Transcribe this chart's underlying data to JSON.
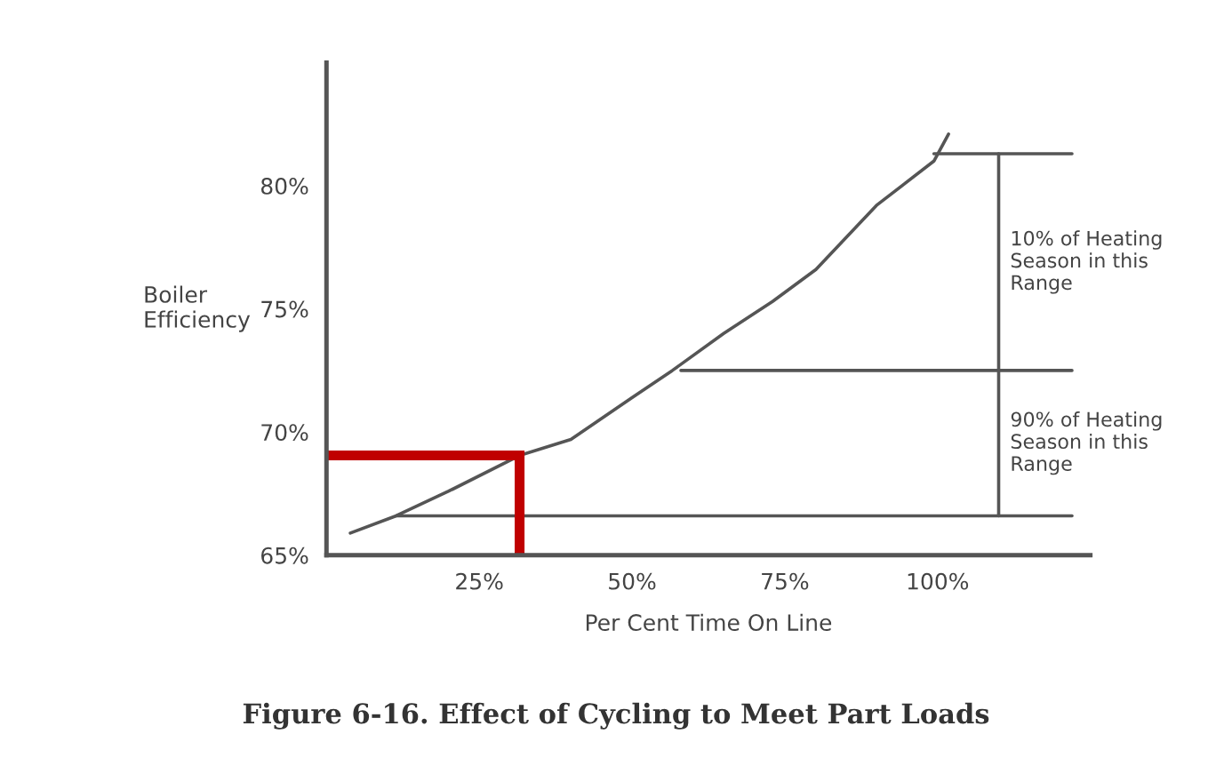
{
  "chart_data": {
    "type": "line",
    "title": "Figure 6-16. Effect of Cycling to Meet Part Loads",
    "xlabel": "Per Cent Time On Line",
    "ylabel": "Boiler\nEfficiency",
    "series": [
      {
        "color": "#555555",
        "x": [
          3.9,
          11.4,
          20,
          31.6,
          40,
          50,
          56.6,
          65,
          73,
          80.1,
          90,
          99.4,
          101.8
        ],
        "values": [
          65.9,
          66.6,
          67.6,
          69.05,
          69.7,
          71.4,
          72.5,
          74.0,
          75.3,
          76.6,
          79.2,
          81.0,
          82.1
        ]
      },
      {
        "color": "#555555",
        "x": [
          11.4,
          122
        ],
        "values": [
          66.6,
          66.6
        ]
      },
      {
        "color": "#555555",
        "x": [
          58,
          122
        ],
        "values": [
          72.5,
          72.5
        ]
      },
      {
        "color": "#555555",
        "x": [
          99.4,
          122
        ],
        "values": [
          81.3,
          81.3
        ]
      },
      {
        "color": "#555555",
        "x": [
          110,
          110,
          110
        ],
        "values": [
          66.6,
          72.5,
          81.3
        ]
      },
      {
        "color": "#c00000",
        "x": [
          0,
          31.6,
          31.6
        ],
        "values": [
          69.05,
          69.05,
          65
        ]
      }
    ],
    "annotations": [
      "10% of Heating\nSeason in this\nRange",
      "90% of Heating\nSeason in this\nRange"
    ],
    "xlim": [
      0,
      125
    ],
    "ylim": [
      65,
      85
    ],
    "xticks": [
      {
        "value": 0,
        "label": null
      },
      {
        "value": 25,
        "label": "25%"
      },
      {
        "value": 50,
        "label": "50%"
      },
      {
        "value": 75,
        "label": "75%"
      },
      {
        "value": 100,
        "label": "100%"
      }
    ],
    "yticks": [
      {
        "value": 65,
        "label": "65%"
      },
      {
        "value": 70,
        "label": "70%"
      },
      {
        "value": 75,
        "label": "75%"
      },
      {
        "value": 80,
        "label": "80%"
      }
    ],
    "grid": false,
    "legend": false,
    "marker": "none",
    "line_style": "solid"
  }
}
